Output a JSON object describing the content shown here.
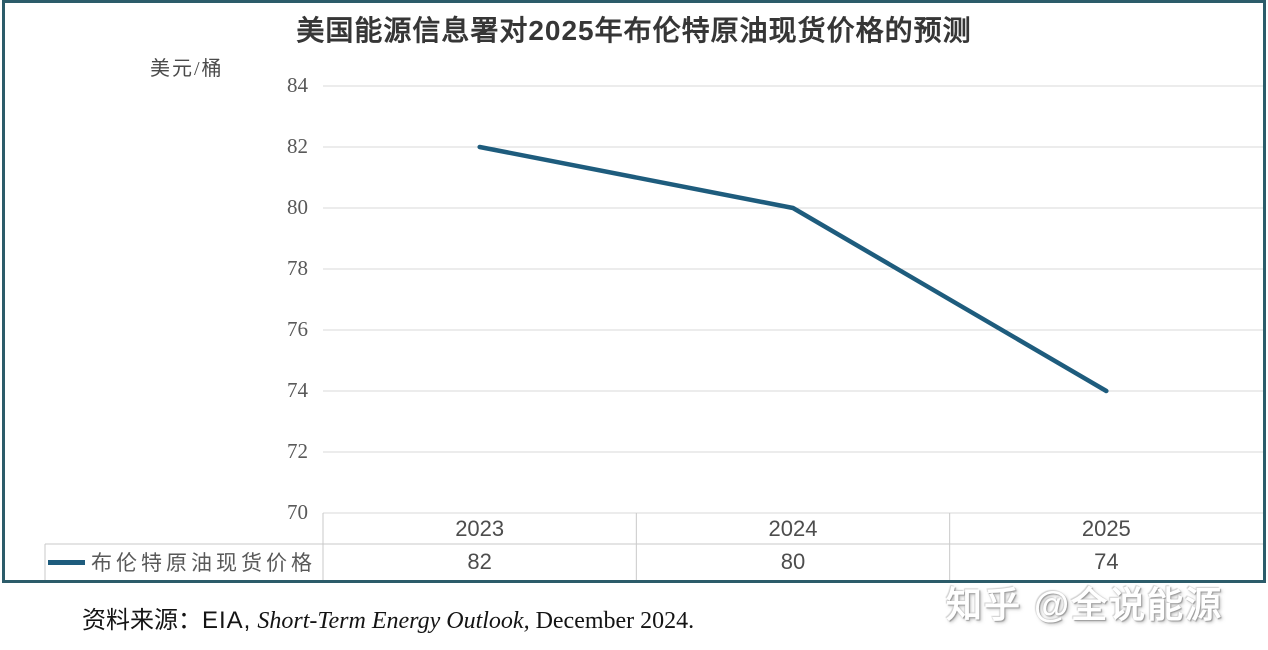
{
  "chart_data": {
    "type": "line",
    "title": "美国能源信息署对2025年布伦特原油现货价格的预测",
    "ylabel": "美元/桶",
    "categories": [
      "2023",
      "2024",
      "2025"
    ],
    "series": [
      {
        "name": "布伦特原油现货价格",
        "values": [
          82,
          80,
          74
        ],
        "color": "#1e5c7d"
      }
    ],
    "ylim": [
      70,
      84
    ],
    "yticks": [
      84,
      82,
      80,
      78,
      76,
      74,
      72,
      70
    ],
    "grid": "horizontal",
    "legend_position": "bottom-left",
    "data_table_shown": true
  },
  "colors": {
    "frame": "#2c5c6a",
    "grid": "#d9d9d9",
    "table_border": "#c9c9c9"
  },
  "source": {
    "prefix": "资料来源：",
    "org": "EIA,",
    "publication": "Short-Term Energy Outlook,",
    "date": "December 2024."
  },
  "watermark": {
    "text": "知乎 @全说能源"
  }
}
